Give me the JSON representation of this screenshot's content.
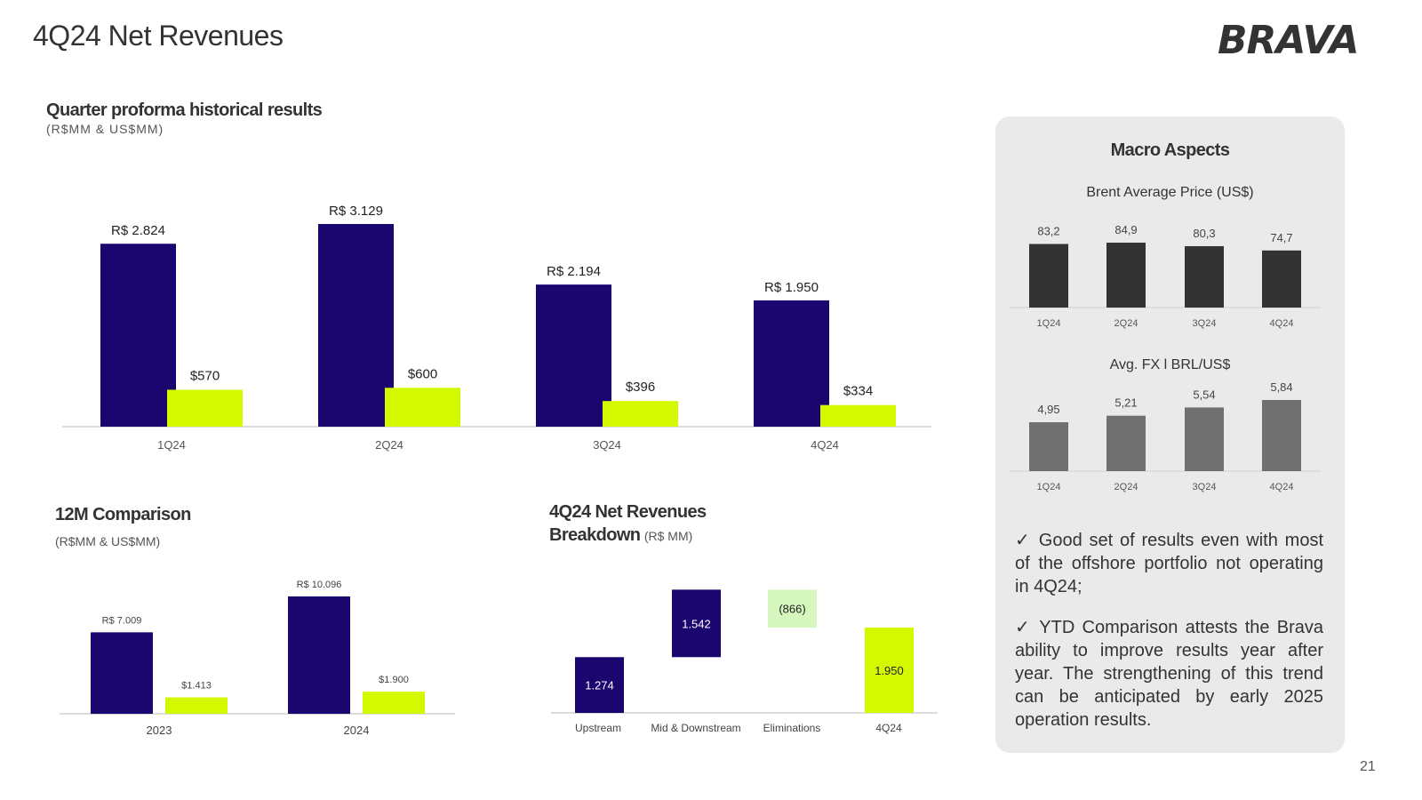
{
  "header": {
    "title": "4Q24 Net Revenues",
    "logo_text": "BRAVA"
  },
  "quarter_section": {
    "title": "Quarter proforma historical results",
    "subtitle": "(R$MM & US$MM)"
  },
  "comparison_section": {
    "title": "12M Comparison",
    "subtitle": "(R$MM & US$MM)"
  },
  "breakdown_section": {
    "title_line1": "4Q24 Net Revenues",
    "title_line2": "Breakdown",
    "subtitle": "(R$ MM)"
  },
  "macro": {
    "title": "Macro Aspects",
    "brent_title": "Brent Average Price (US$)",
    "fx_title": "Avg. FX  l BRL/US$"
  },
  "bullets": [
    "✓ Good set of results even with most of the offshore portfolio not operating in 4Q24;",
    "✓ YTD Comparison attests the Brava ability to improve results year after year. The strengthening of this trend can be anticipated by early 2025 operation results."
  ],
  "page_number": "21",
  "colors": {
    "brl": "#1b0670",
    "usd": "#d4f800",
    "brent": "#333333",
    "fx": "#707070",
    "elimination": "#d5f7bd",
    "panel": "#eaeaea"
  },
  "chart_data": [
    {
      "id": "quarterly",
      "type": "bar",
      "categories": [
        "1Q24",
        "2Q24",
        "3Q24",
        "4Q24"
      ],
      "series": [
        {
          "values": [
            2824,
            3129,
            2194,
            1950
          ],
          "labels": [
            "R$ 2.824",
            "R$ 3.129",
            "R$ 2.194",
            "R$ 1.950"
          ]
        },
        {
          "values": [
            570,
            600,
            396,
            334
          ],
          "labels": [
            "$570",
            "$600",
            "$396",
            "$334"
          ]
        }
      ]
    },
    {
      "id": "annual",
      "type": "bar",
      "categories": [
        "2023",
        "2024"
      ],
      "series": [
        {
          "values": [
            7009,
            10096
          ],
          "labels": [
            "R$ 7.009",
            "R$ 10.096"
          ]
        },
        {
          "values": [
            1413,
            1900
          ],
          "labels": [
            "$1.413",
            "$1.900"
          ]
        }
      ]
    },
    {
      "id": "waterfall",
      "type": "bar",
      "subtype": "waterfall",
      "categories": [
        "Upstream",
        "Mid & Downstream",
        "Eliminations",
        "4Q24"
      ],
      "values": [
        1274,
        1542,
        -866,
        1950
      ],
      "labels": [
        "1.274",
        "1.542",
        "(866)",
        "1.950"
      ]
    },
    {
      "id": "brent",
      "type": "bar",
      "title": "Brent Average Price (US$)",
      "categories": [
        "1Q24",
        "2Q24",
        "3Q24",
        "4Q24"
      ],
      "values": [
        83.2,
        84.9,
        80.3,
        74.7
      ],
      "labels": [
        "83,2",
        "84,9",
        "80,3",
        "74,7"
      ]
    },
    {
      "id": "fx",
      "type": "bar",
      "title": "Avg. FX  l BRL/US$",
      "categories": [
        "1Q24",
        "2Q24",
        "3Q24",
        "4Q24"
      ],
      "values": [
        4.95,
        5.21,
        5.54,
        5.84
      ],
      "labels": [
        "4,95",
        "5,21",
        "5,54",
        "5,84"
      ]
    }
  ]
}
